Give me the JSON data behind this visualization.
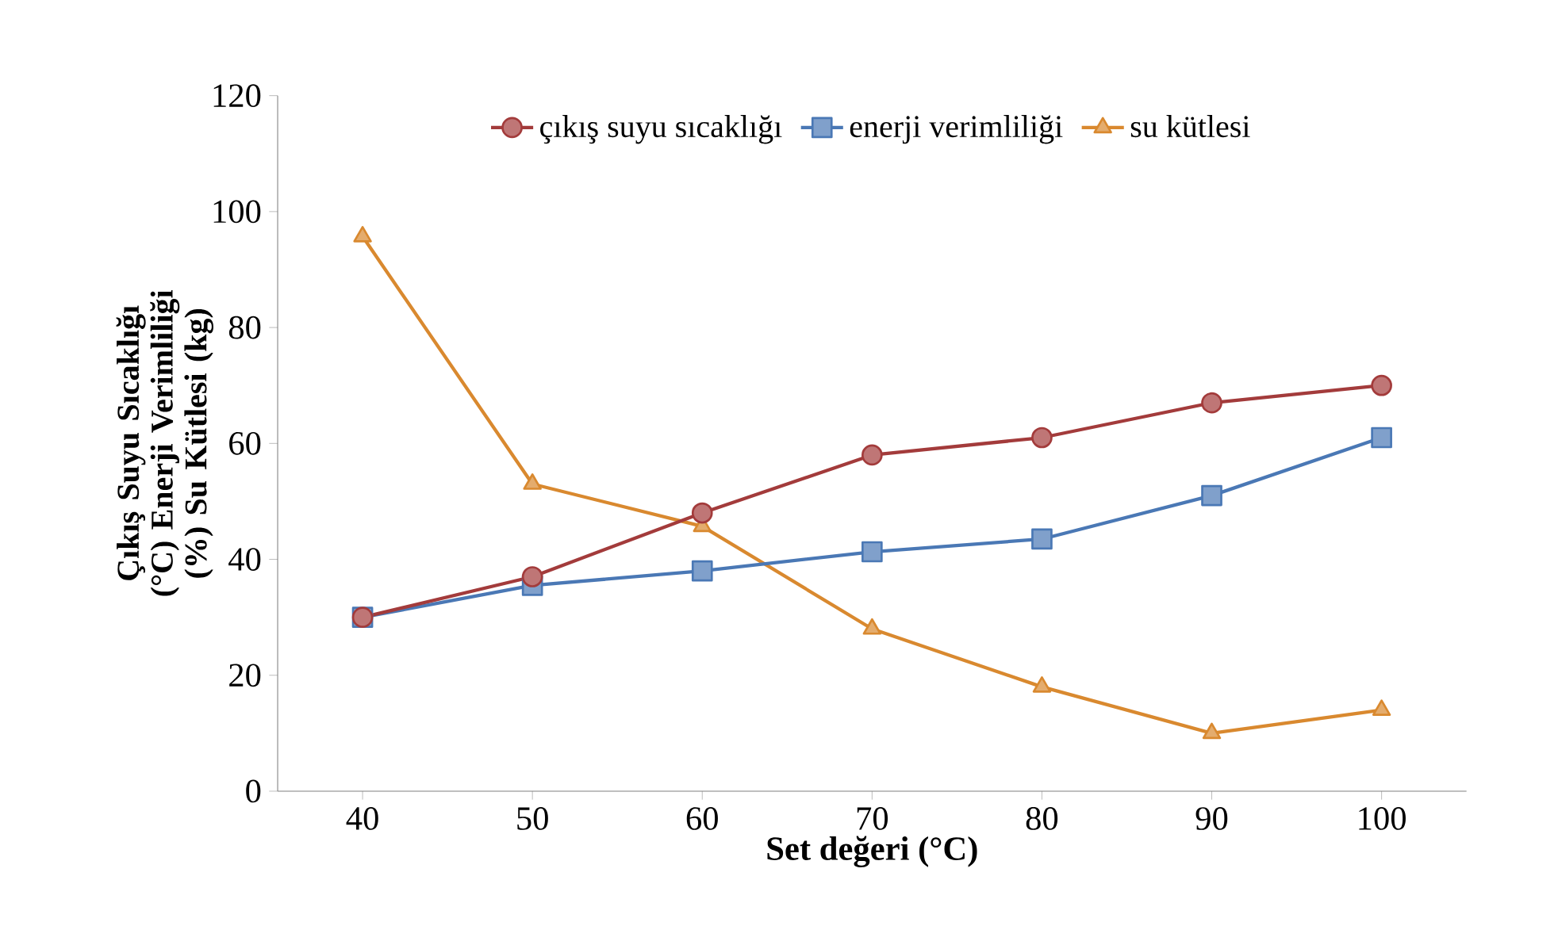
{
  "chart_data": {
    "type": "line",
    "xlabel": "Set değeri  (°C)",
    "ylabel": "Çıkış Suyu Sıcaklığı (°C) Enerji Verimliliği  (%) Su Kütlesi (kg)",
    "x": [
      40,
      50,
      60,
      70,
      80,
      90,
      100
    ],
    "series": [
      {
        "name": "çıkış suyu sıcaklığı",
        "color": "#a33b3b",
        "marker": "circle",
        "values": [
          30,
          37,
          48,
          58,
          61,
          67,
          70
        ]
      },
      {
        "name": "enerji verimliliği",
        "color": "#4a78b5",
        "marker": "square",
        "values": [
          30,
          35.5,
          38,
          41.3,
          43.5,
          51,
          61
        ]
      },
      {
        "name": "su kütlesi",
        "color": "#d9892f",
        "marker": "triangle",
        "values": [
          95.7,
          53,
          45.7,
          28,
          18,
          10,
          14
        ]
      }
    ],
    "xlim": [
      35,
      105
    ],
    "xticks": [
      40,
      50,
      60,
      70,
      80,
      90,
      100
    ],
    "ylim": [
      0,
      120
    ],
    "yticks": [
      0,
      20,
      40,
      60,
      80,
      100,
      120
    ],
    "grid": false,
    "legend": "top",
    "line_style": "solid"
  }
}
